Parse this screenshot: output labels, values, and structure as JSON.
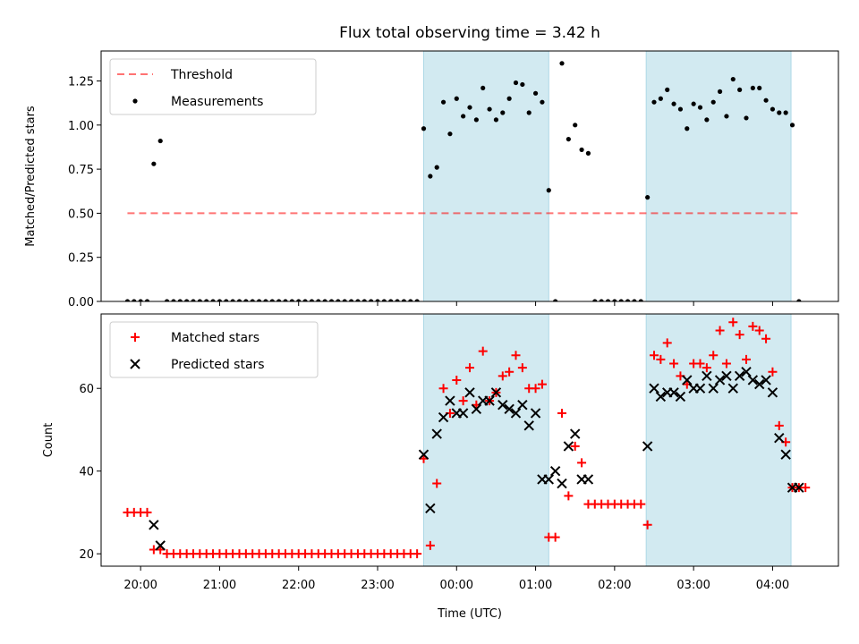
{
  "title": "Flux total observing time = 3.42 h",
  "colors": {
    "shade": "#add8e6",
    "threshold": "#ff0000",
    "matched": "#ff0000",
    "predicted": "#000000",
    "measurement": "#000000"
  },
  "chart_data": [
    {
      "type": "scatter",
      "ylabel": "Matched/Predicted stars",
      "ylim": [
        0,
        1.42
      ],
      "yticks": [
        "0.00",
        "0.25",
        "0.50",
        "0.75",
        "1.00",
        "1.25"
      ],
      "ytick_values": [
        0,
        0.25,
        0.5,
        0.75,
        1.0,
        1.25
      ],
      "legend_position": "upper-left",
      "shaded_spans": [
        [
          "23:35",
          "01:10"
        ],
        [
          "02:24",
          "04:14"
        ]
      ],
      "threshold": {
        "name": "Threshold",
        "y": 0.5,
        "x_range": [
          "19:50",
          "04:20"
        ]
      },
      "series": [
        {
          "name": "Measurements",
          "x": [
            "19:50",
            "19:55",
            "20:00",
            "20:05",
            "20:10",
            "20:15",
            "20:20",
            "20:25",
            "20:30",
            "20:35",
            "20:40",
            "20:45",
            "20:50",
            "20:55",
            "21:00",
            "21:05",
            "21:10",
            "21:15",
            "21:20",
            "21:25",
            "21:30",
            "21:35",
            "21:40",
            "21:45",
            "21:50",
            "21:55",
            "22:00",
            "22:05",
            "22:10",
            "22:15",
            "22:20",
            "22:25",
            "22:30",
            "22:35",
            "22:40",
            "22:45",
            "22:50",
            "22:55",
            "23:00",
            "23:05",
            "23:10",
            "23:15",
            "23:20",
            "23:25",
            "23:30",
            "23:35",
            "23:40",
            "23:45",
            "23:50",
            "23:55",
            "00:00",
            "00:05",
            "00:10",
            "00:15",
            "00:20",
            "00:25",
            "00:30",
            "00:35",
            "00:40",
            "00:45",
            "00:50",
            "00:55",
            "01:00",
            "01:05",
            "01:10",
            "01:15",
            "01:20",
            "01:25",
            "01:30",
            "01:35",
            "01:40",
            "01:45",
            "01:50",
            "01:55",
            "02:00",
            "02:05",
            "02:10",
            "02:15",
            "02:20",
            "02:25",
            "02:30",
            "02:35",
            "02:40",
            "02:45",
            "02:50",
            "02:55",
            "03:00",
            "03:05",
            "03:10",
            "03:15",
            "03:20",
            "03:25",
            "03:30",
            "03:35",
            "03:40",
            "03:45",
            "03:50",
            "03:55",
            "04:00",
            "04:05",
            "04:10",
            "04:15",
            "04:20"
          ],
          "y": [
            0,
            0,
            0,
            0,
            0.78,
            0.91,
            0,
            0,
            0,
            0,
            0,
            0,
            0,
            0,
            0,
            0,
            0,
            0,
            0,
            0,
            0,
            0,
            0,
            0,
            0,
            0,
            0,
            0,
            0,
            0,
            0,
            0,
            0,
            0,
            0,
            0,
            0,
            0,
            0,
            0,
            0,
            0,
            0,
            0,
            0,
            0.98,
            0.71,
            0.76,
            1.13,
            0.95,
            1.15,
            1.05,
            1.1,
            1.03,
            1.21,
            1.09,
            1.03,
            1.07,
            1.15,
            1.24,
            1.23,
            1.07,
            1.18,
            1.13,
            0.63,
            0,
            1.35,
            0.92,
            1.0,
            0.86,
            0.84,
            0,
            0,
            0,
            0,
            0,
            0,
            0,
            0,
            0.59,
            1.13,
            1.15,
            1.2,
            1.12,
            1.09,
            0.98,
            1.12,
            1.1,
            1.03,
            1.13,
            1.19,
            1.05,
            1.26,
            1.2,
            1.04,
            1.21,
            1.21,
            1.14,
            1.09,
            1.07,
            1.07,
            1.0,
            0
          ]
        }
      ]
    },
    {
      "type": "scatter",
      "xlabel": "Time (UTC)",
      "ylabel": "Count",
      "xlim": [
        "19:30",
        "04:50"
      ],
      "xticks": [
        "20:00",
        "21:00",
        "22:00",
        "23:00",
        "00:00",
        "01:00",
        "02:00",
        "03:00",
        "04:00"
      ],
      "ylim": [
        17,
        78
      ],
      "yticks": [
        "20",
        "40",
        "60"
      ],
      "ytick_values": [
        20,
        40,
        60
      ],
      "legend_position": "upper-left",
      "shaded_spans": [
        [
          "23:35",
          "01:10"
        ],
        [
          "02:24",
          "04:14"
        ]
      ],
      "series": [
        {
          "name": "Matched stars",
          "marker": "plus",
          "x": [
            "19:50",
            "19:55",
            "20:00",
            "20:05",
            "20:10",
            "20:15",
            "20:20",
            "20:25",
            "20:30",
            "20:35",
            "20:40",
            "20:45",
            "20:50",
            "20:55",
            "21:00",
            "21:05",
            "21:10",
            "21:15",
            "21:20",
            "21:25",
            "21:30",
            "21:35",
            "21:40",
            "21:45",
            "21:50",
            "21:55",
            "22:00",
            "22:05",
            "22:10",
            "22:15",
            "22:20",
            "22:25",
            "22:30",
            "22:35",
            "22:40",
            "22:45",
            "22:50",
            "22:55",
            "23:00",
            "23:05",
            "23:10",
            "23:15",
            "23:20",
            "23:25",
            "23:30",
            "23:35",
            "23:40",
            "23:45",
            "23:50",
            "23:55",
            "00:00",
            "00:05",
            "00:10",
            "00:15",
            "00:20",
            "00:25",
            "00:30",
            "00:35",
            "00:40",
            "00:45",
            "00:50",
            "00:55",
            "01:00",
            "01:05",
            "01:10",
            "01:15",
            "01:20",
            "01:25",
            "01:30",
            "01:35",
            "01:40",
            "01:45",
            "01:50",
            "01:55",
            "02:00",
            "02:05",
            "02:10",
            "02:15",
            "02:20",
            "02:25",
            "02:30",
            "02:35",
            "02:40",
            "02:45",
            "02:50",
            "02:55",
            "03:00",
            "03:05",
            "03:10",
            "03:15",
            "03:20",
            "03:25",
            "03:30",
            "03:35",
            "03:40",
            "03:45",
            "03:50",
            "03:55",
            "04:00",
            "04:05",
            "04:10",
            "04:15",
            "04:20",
            "04:25"
          ],
          "y": [
            30,
            30,
            30,
            30,
            21,
            21,
            20,
            20,
            20,
            20,
            20,
            20,
            20,
            20,
            20,
            20,
            20,
            20,
            20,
            20,
            20,
            20,
            20,
            20,
            20,
            20,
            20,
            20,
            20,
            20,
            20,
            20,
            20,
            20,
            20,
            20,
            20,
            20,
            20,
            20,
            20,
            20,
            20,
            20,
            20,
            43,
            22,
            37,
            60,
            54,
            62,
            57,
            65,
            56,
            69,
            57,
            59,
            63,
            64,
            68,
            65,
            60,
            60,
            61,
            24,
            24,
            54,
            34,
            46,
            42,
            32,
            32,
            32,
            32,
            32,
            32,
            32,
            32,
            32,
            27,
            68,
            67,
            71,
            66,
            63,
            61,
            66,
            66,
            65,
            68,
            74,
            66,
            76,
            73,
            67,
            75,
            74,
            72,
            64,
            51,
            47,
            36,
            36,
            36
          ]
        },
        {
          "name": "Predicted stars",
          "marker": "x",
          "x": [
            "20:10",
            "20:15",
            "23:35",
            "23:40",
            "23:45",
            "23:50",
            "23:55",
            "00:00",
            "00:05",
            "00:10",
            "00:15",
            "00:20",
            "00:25",
            "00:30",
            "00:35",
            "00:40",
            "00:45",
            "00:50",
            "00:55",
            "01:00",
            "01:05",
            "01:10",
            "01:15",
            "01:20",
            "01:25",
            "01:30",
            "01:35",
            "01:40",
            "02:25",
            "02:30",
            "02:35",
            "02:40",
            "02:45",
            "02:50",
            "02:55",
            "03:00",
            "03:05",
            "03:10",
            "03:15",
            "03:20",
            "03:25",
            "03:30",
            "03:35",
            "03:40",
            "03:45",
            "03:50",
            "03:55",
            "04:00",
            "04:05",
            "04:10",
            "04:15",
            "04:20"
          ],
          "y": [
            27,
            22,
            44,
            31,
            49,
            53,
            57,
            54,
            54,
            59,
            55,
            57,
            57,
            59,
            56,
            55,
            54,
            56,
            51,
            54,
            38,
            38,
            40,
            37,
            46,
            49,
            38,
            38,
            46,
            60,
            58,
            59,
            59,
            58,
            62,
            60,
            60,
            63,
            60,
            62,
            63,
            60,
            63,
            64,
            62,
            61,
            62,
            59,
            48,
            44,
            36,
            36
          ]
        }
      ]
    }
  ]
}
